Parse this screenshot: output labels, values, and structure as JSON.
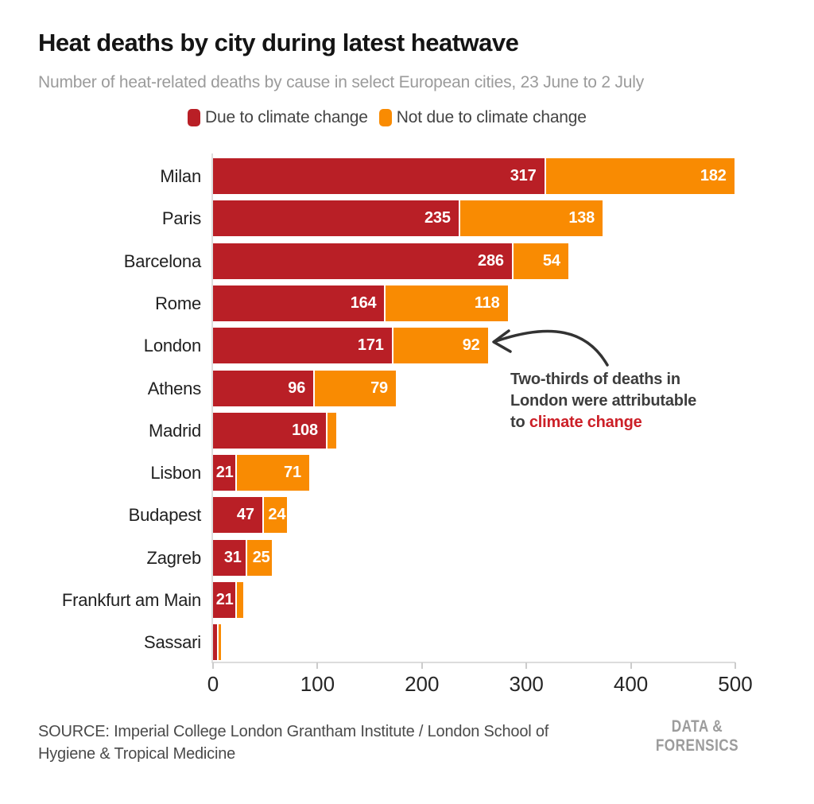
{
  "title": "Heat deaths by city during latest heatwave",
  "subtitle": "Number of heat-related deaths by cause in select European cities, 23 June to 2 July",
  "legend": {
    "items": [
      {
        "label": "Due to climate change",
        "color": "#b91f26"
      },
      {
        "label": "Not due to climate change",
        "color": "#f98b02"
      }
    ]
  },
  "chart_data": {
    "type": "bar",
    "orientation": "horizontal",
    "stacked": true,
    "title": "Heat deaths by city during latest heatwave",
    "subtitle": "Number of heat-related deaths by cause in select European cities, 23 June to 2 July",
    "xlabel": "",
    "ylabel": "",
    "xlim": [
      0,
      500
    ],
    "x_ticks": [
      0,
      100,
      200,
      300,
      400,
      500
    ],
    "grid": false,
    "legend_position": "top",
    "categories": [
      "Milan",
      "Paris",
      "Barcelona",
      "Rome",
      "London",
      "Athens",
      "Madrid",
      "Lisbon",
      "Budapest",
      "Zagreb",
      "Frankfurt am Main",
      "Sassari"
    ],
    "series": [
      {
        "name": "Due to climate change",
        "color": "#b91f26",
        "values": [
          317,
          235,
          286,
          164,
          171,
          96,
          108,
          21,
          47,
          31,
          21,
          4
        ],
        "data_labels": [
          "317",
          "235",
          "286",
          "164",
          "171",
          "96",
          "108",
          "21",
          "47",
          "31",
          "21",
          ""
        ]
      },
      {
        "name": "Not due to climate change",
        "color": "#f98b02",
        "values": [
          182,
          138,
          54,
          118,
          92,
          79,
          10,
          71,
          24,
          25,
          8,
          3
        ],
        "data_labels": [
          "182",
          "138",
          "54",
          "118",
          "92",
          "79",
          "",
          "71",
          "24",
          "25",
          "",
          ""
        ]
      }
    ],
    "annotation": "Two-thirds of deaths in London were attributable to climate change"
  },
  "annotation": {
    "line1": "Two-thirds of deaths in",
    "line2": "London were attributable",
    "line3_prefix": "to ",
    "line3_highlight": "climate change",
    "highlight_color": "#cc1f27"
  },
  "source": {
    "line1": "SOURCE: Imperial College London Grantham Institute / London School of",
    "line2": "Hygiene & Tropical Medicine"
  },
  "logo": {
    "line1": "DATA &",
    "line2": "FORENSICS"
  }
}
